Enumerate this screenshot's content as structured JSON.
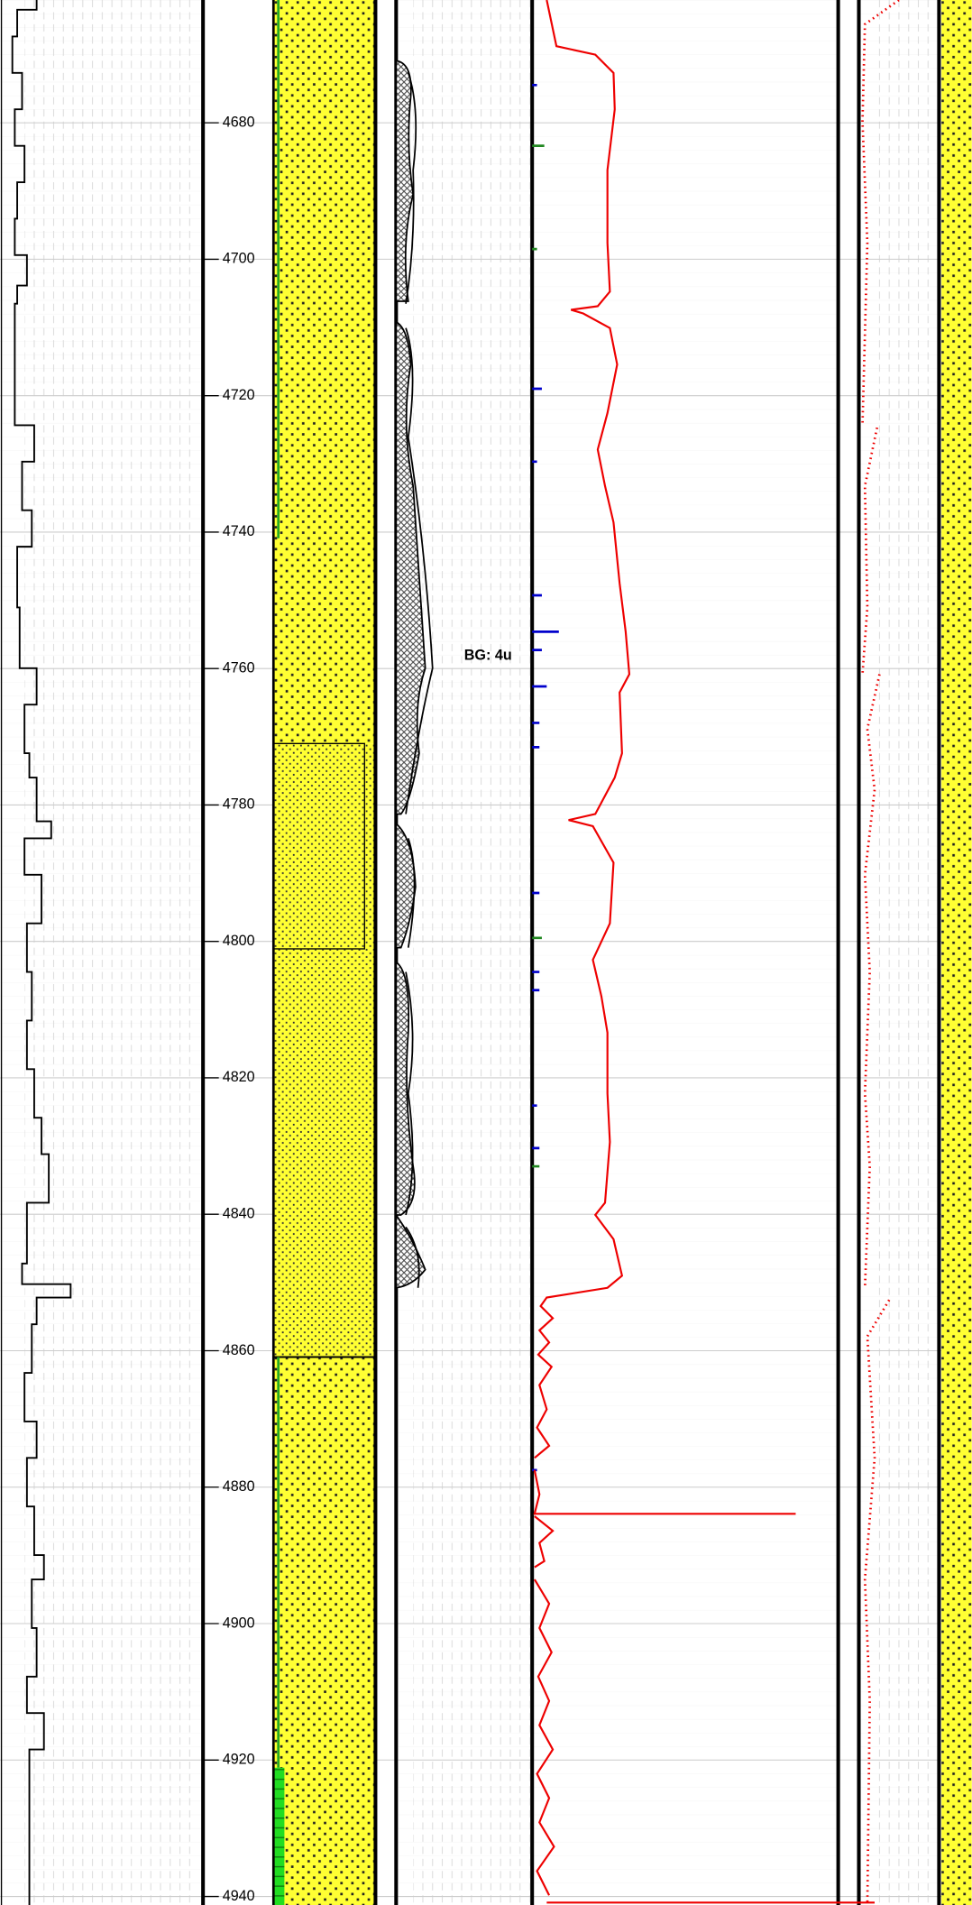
{
  "depth_track": {
    "labels": [
      4680,
      4700,
      4720,
      4740,
      4760,
      4780,
      4800,
      4820,
      4840,
      4860,
      4880,
      4900,
      4920,
      4940
    ]
  },
  "annotations": [
    {
      "text": "BG: 4u"
    }
  ]
}
